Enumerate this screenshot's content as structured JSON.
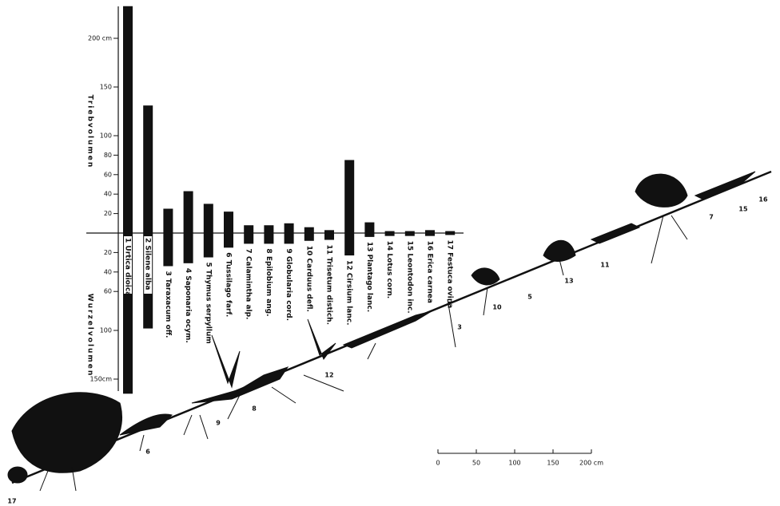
{
  "chart_data": {
    "type": "diverging-bar",
    "y_label_top": "Triebvolumen",
    "y_label_bottom": "Wurzelvolumen",
    "categories": [
      "1 Urtica dioica",
      "2 Silene alba",
      "3 Taraxacum off.",
      "4 Saponaria ocym.",
      "5 Thymus serpyllum",
      "6 Tussilago farf.",
      "7 Calamintha alp.",
      "8 Epilobium ang.",
      "9 Globularia cord.",
      "10 Carduus defl.",
      "11 Trisetum distich.",
      "12 Cirsium lanc.",
      "13 Plantago lanc.",
      "14 Lotus corn.",
      "15 Leontodon inc.",
      "16 Erica carnea",
      "17 Festuca ovina"
    ],
    "series": [
      {
        "name": "Triebvolumen",
        "color": "#111111",
        "values": [
          233,
          131,
          25,
          43,
          30,
          22,
          8,
          8,
          10,
          6,
          3,
          75,
          11,
          2,
          2,
          3,
          2
        ]
      },
      {
        "name": "Wurzelvolumen",
        "color": "#111111",
        "values": [
          -165,
          -98,
          -34,
          -31,
          -25,
          -15,
          -11,
          -11,
          -11,
          -8,
          -7,
          -23,
          -4,
          -3,
          -3,
          -3,
          -2
        ]
      }
    ],
    "ylim": [
      -170,
      235
    ],
    "yticks": [
      {
        "value": -150,
        "label": "150cm"
      },
      {
        "value": -100,
        "label": "100"
      },
      {
        "value": -60,
        "label": "60"
      },
      {
        "value": -40,
        "label": "40"
      },
      {
        "value": -20,
        "label": "20"
      },
      20,
      40,
      60,
      80,
      100,
      150,
      {
        "value": 200,
        "label": "200 cm"
      }
    ],
    "plant_labels": [
      "17",
      "6",
      "9",
      "8",
      "12",
      "3",
      "10",
      "5",
      "13",
      "11",
      "7",
      "15",
      "16"
    ],
    "scale_bar": {
      "ticks": [
        0,
        50,
        100,
        150,
        {
          "value": 200,
          "label": "200 cm"
        }
      ]
    }
  }
}
